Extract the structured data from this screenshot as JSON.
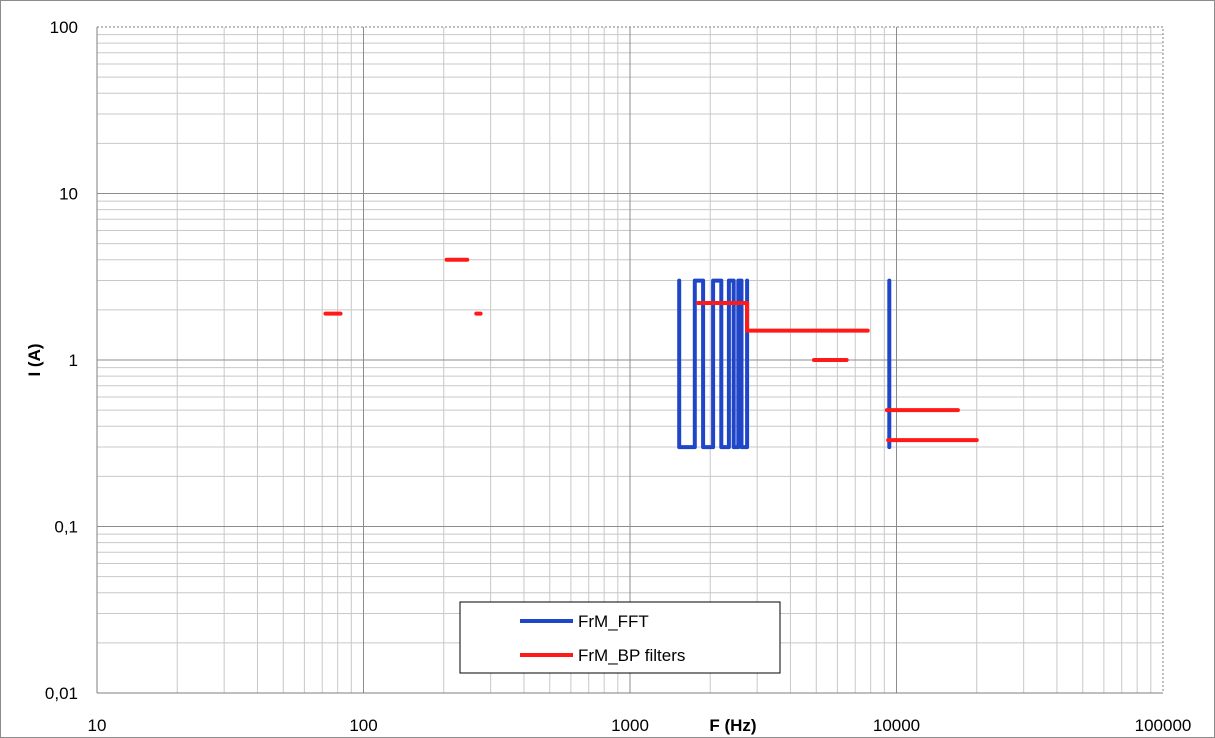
{
  "chart_data": {
    "type": "line",
    "title": "",
    "xlabel": "F (Hz)",
    "ylabel": "I (A)",
    "x_scale": "log",
    "y_scale": "log",
    "xlim": [
      10,
      100000
    ],
    "ylim": [
      0.01,
      100
    ],
    "grid": true,
    "legend_position": "bottom-center",
    "x_tick_labels": [
      {
        "value": 10,
        "label": "10"
      },
      {
        "value": 100,
        "label": "100"
      },
      {
        "value": 1000,
        "label": "1000"
      },
      {
        "value": 10000,
        "label": "10000"
      },
      {
        "value": 100000,
        "label": "100000"
      }
    ],
    "y_tick_labels": [
      {
        "value": 0.01,
        "label": "0,01"
      },
      {
        "value": 0.1,
        "label": "0,1"
      },
      {
        "value": 1,
        "label": "1"
      },
      {
        "value": 10,
        "label": "10"
      },
      {
        "value": 100,
        "label": "100"
      }
    ],
    "series": [
      {
        "name": "FrM_FFT",
        "color": "#1f45c8",
        "kind": "polyline",
        "points": [
          [
            1530,
            3.0
          ],
          [
            1530,
            0.3
          ],
          [
            1750,
            0.3
          ],
          [
            1750,
            3.0
          ],
          [
            1880,
            3.0
          ],
          [
            1880,
            0.3
          ],
          [
            2050,
            0.3
          ],
          [
            2050,
            3.0
          ],
          [
            2200,
            3.0
          ],
          [
            2200,
            0.3
          ],
          [
            2350,
            0.3
          ],
          [
            2350,
            3.0
          ],
          [
            2450,
            3.0
          ],
          [
            2450,
            0.3
          ],
          [
            2550,
            0.3
          ],
          [
            2550,
            3.0
          ],
          [
            2620,
            3.0
          ],
          [
            2620,
            0.3
          ],
          [
            2750,
            0.3
          ],
          [
            2750,
            3.0
          ]
        ]
      },
      {
        "name": "FrM_FFT",
        "color": "#1f45c8",
        "kind": "polyline",
        "points": [
          [
            9400,
            3.0
          ],
          [
            9400,
            0.3
          ]
        ]
      },
      {
        "name": "FrM_BP filters",
        "color": "#ff1a1a",
        "kind": "segments",
        "segments": [
          [
            [
              72,
              1.9
            ],
            [
              82,
              1.9
            ]
          ],
          [
            [
              205,
              4.0
            ],
            [
              245,
              4.0
            ]
          ],
          [
            [
              265,
              1.9
            ],
            [
              275,
              1.9
            ]
          ],
          [
            [
              1800,
              2.2
            ],
            [
              2750,
              2.2
            ]
          ],
          [
            [
              2750,
              2.2
            ],
            [
              2750,
              1.5
            ]
          ],
          [
            [
              2750,
              1.5
            ],
            [
              7800,
              1.5
            ]
          ],
          [
            [
              4900,
              1.0
            ],
            [
              6500,
              1.0
            ]
          ],
          [
            [
              9200,
              0.5
            ],
            [
              17000,
              0.5
            ]
          ],
          [
            [
              9300,
              0.33
            ],
            [
              20000,
              0.33
            ]
          ]
        ]
      }
    ],
    "legend": [
      {
        "label": "FrM_FFT",
        "color": "#1f45c8"
      },
      {
        "label": "FrM_BP filters",
        "color": "#ff1a1a"
      }
    ]
  }
}
